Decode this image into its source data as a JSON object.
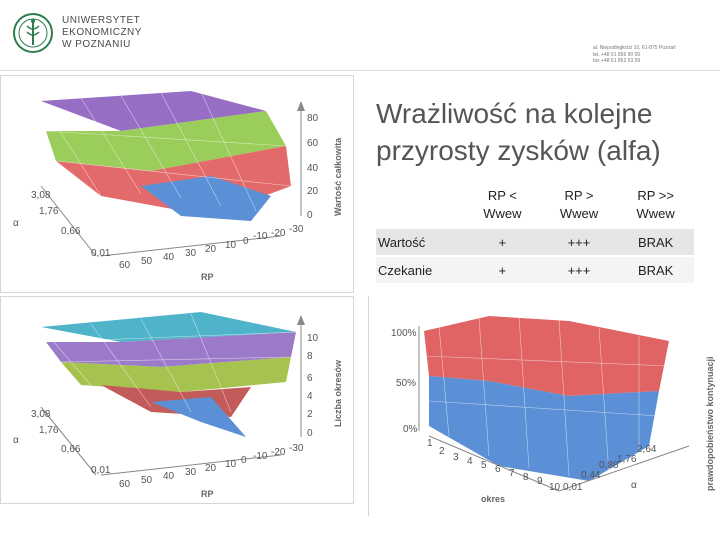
{
  "header": {
    "university_lines": [
      "UNIWERSYTET",
      "EKONOMICZNY",
      "W POZNANIU"
    ],
    "address_lines": [
      "al. Niepodległości 10, 61-875 Poznań",
      "tel. +48 61 856 90 00",
      "fax +48 61 852 53 59"
    ]
  },
  "title_lines": [
    "Wrażliwość na kolejne",
    "przyrosty zysków (alfa)"
  ],
  "table": {
    "headers": [
      [
        "",
        ""
      ],
      [
        "RP <",
        "Wwew"
      ],
      [
        "RP >",
        "Wwew"
      ],
      [
        "RP >>",
        "Wwew"
      ]
    ],
    "rows": [
      [
        "Wartość",
        "+",
        "+++",
        "BRAK"
      ],
      [
        "Czekanie",
        "+",
        "+++",
        "BRAK"
      ]
    ]
  },
  "charts": {
    "top": {
      "z_label": "Wartość całkowita",
      "z_ticks": [
        "80",
        "60",
        "40",
        "20",
        "0"
      ],
      "alpha_ticks": [
        "3,08",
        "1,76",
        "0,66",
        "0,01"
      ],
      "alpha_label": "α",
      "rp_ticks": [
        "60",
        "50",
        "40",
        "30",
        "20",
        "10",
        "0",
        "-10",
        "-20",
        "-30"
      ],
      "rp_label": "RP",
      "colors": [
        "#8b5fbf",
        "#9acd5a",
        "#e36a6a",
        "#5b8fd6"
      ]
    },
    "bottom_left": {
      "z_label": "Liczba okresów",
      "z_ticks": [
        "10",
        "8",
        "6",
        "4",
        "2",
        "0"
      ],
      "alpha_ticks": [
        "3,08",
        "1,76",
        "0,66",
        "0,01"
      ],
      "alpha_label": "α",
      "rp_ticks": [
        "60",
        "50",
        "40",
        "30",
        "20",
        "10",
        "0",
        "-10",
        "-20",
        "-30"
      ],
      "rp_label": "RP",
      "colors": [
        "#4fb3c9",
        "#9b7bc9",
        "#a6c24f",
        "#c45b5b",
        "#5b8fd6"
      ]
    },
    "bottom_right": {
      "z_label": "prawdopobieństwo kontynuacji",
      "z_ticks": [
        "100%",
        "50%",
        "0%"
      ],
      "okres_ticks": [
        "1",
        "2",
        "3",
        "4",
        "5",
        "6",
        "7",
        "8",
        "9",
        "10"
      ],
      "okres_label": "okres",
      "alpha_ticks": [
        "2,64",
        "1,76",
        "0,88",
        "0,44",
        "0,01"
      ],
      "alpha_label": "α",
      "colors": [
        "#e06464",
        "#5b8fd6"
      ]
    }
  }
}
